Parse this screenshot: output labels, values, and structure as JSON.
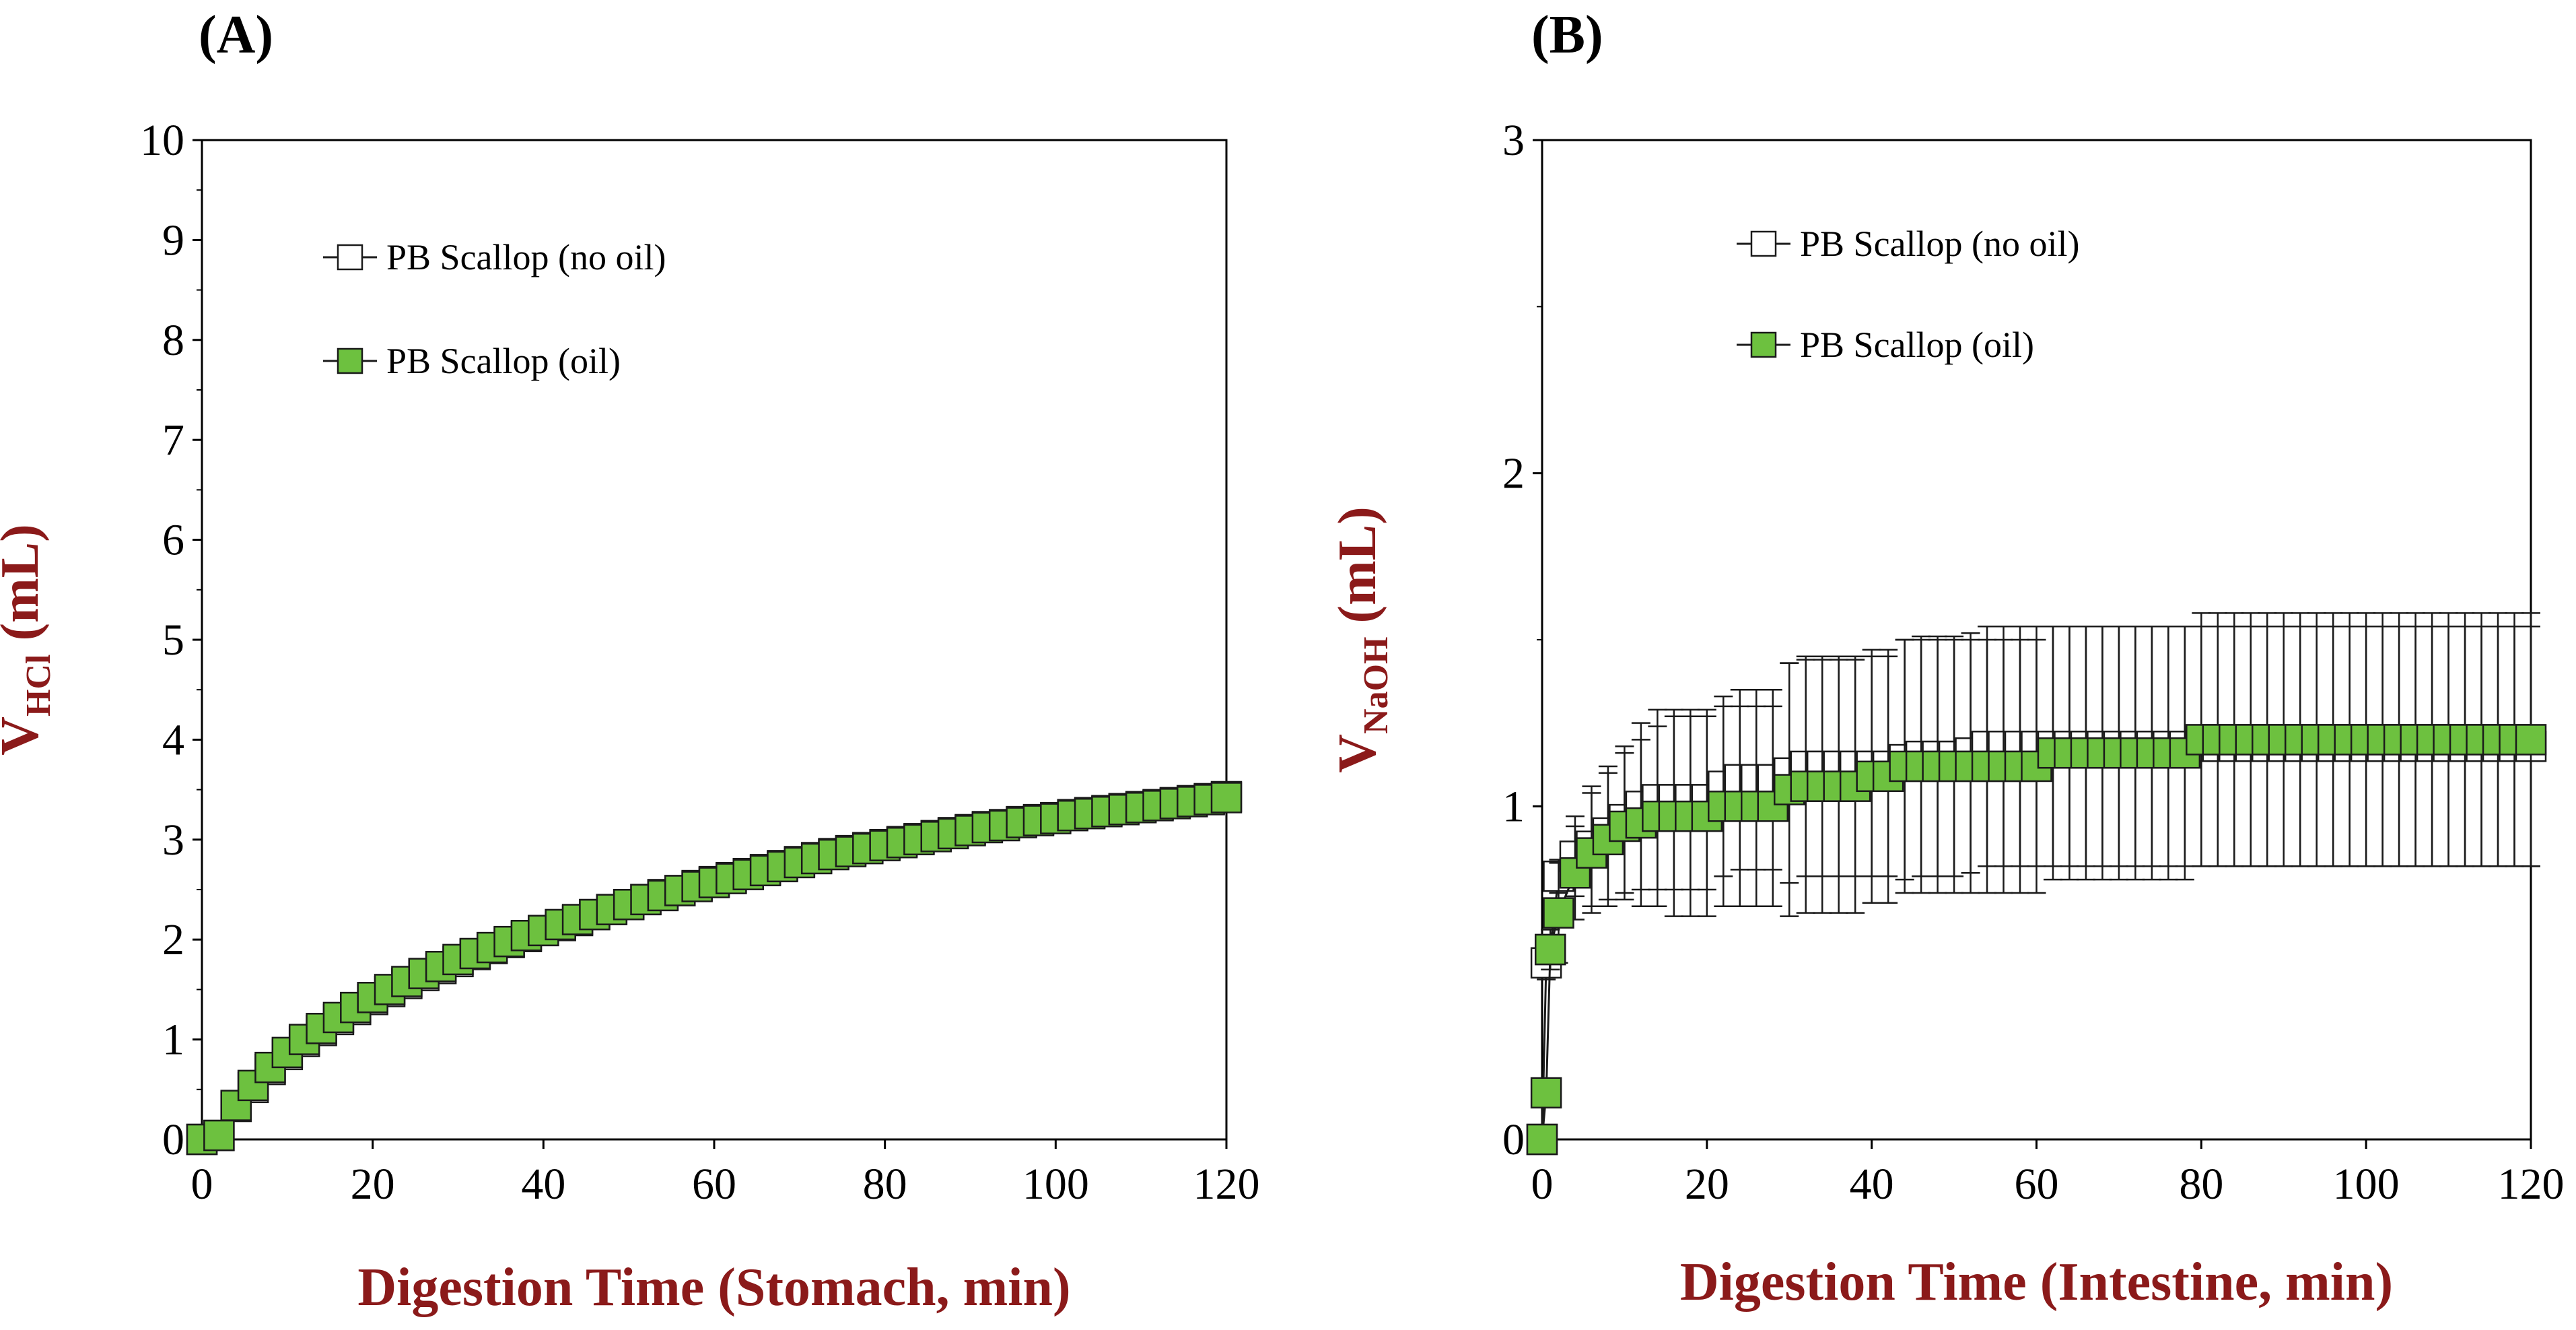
{
  "colors": {
    "axis_title": "#8b1a1a",
    "marker_fill_oil": "#6dc13f",
    "marker_fill_no_oil": "#ffffff",
    "marker_stroke": "#1a1a1a"
  },
  "chart_data": [
    {
      "panel": "(A)",
      "type": "line",
      "title": "(A)",
      "xlabel": "Digestion Time (Stomach, min)",
      "ylabel_main": "V",
      "ylabel_sub": "HCl",
      "ylabel_unit": "(mL)",
      "xlim": [
        0,
        120
      ],
      "ylim": [
        0,
        10
      ],
      "xticks": [
        0,
        20,
        40,
        60,
        80,
        100,
        120
      ],
      "yticks": [
        0,
        1,
        2,
        3,
        4,
        5,
        6,
        7,
        8,
        9,
        10
      ],
      "grid": false,
      "legend_position": "top-left",
      "series": [
        {
          "name": "PB Scallop (no oil)",
          "marker": "open-square",
          "x": [
            0,
            2,
            4,
            6,
            8,
            10,
            12,
            14,
            16,
            18,
            20,
            22,
            24,
            26,
            28,
            30,
            32,
            34,
            36,
            38,
            40,
            42,
            44,
            46,
            48,
            50,
            52,
            54,
            56,
            58,
            60,
            62,
            64,
            66,
            68,
            70,
            72,
            74,
            76,
            78,
            80,
            82,
            84,
            86,
            88,
            90,
            92,
            94,
            96,
            98,
            100,
            102,
            104,
            106,
            108,
            110,
            112,
            114,
            116,
            118,
            120
          ],
          "y": [
            0,
            0.04,
            0.33,
            0.52,
            0.7,
            0.85,
            0.98,
            1.09,
            1.2,
            1.3,
            1.4,
            1.48,
            1.56,
            1.64,
            1.71,
            1.78,
            1.85,
            1.91,
            1.97,
            2.03,
            2.09,
            2.14,
            2.19,
            2.25,
            2.3,
            2.35,
            2.4,
            2.45,
            2.49,
            2.54,
            2.58,
            2.62,
            2.66,
            2.7,
            2.74,
            2.78,
            2.82,
            2.86,
            2.89,
            2.92,
            2.95,
            2.98,
            3.01,
            3.04,
            3.07,
            3.1,
            3.13,
            3.15,
            3.18,
            3.2,
            3.22,
            3.25,
            3.27,
            3.29,
            3.31,
            3.33,
            3.35,
            3.37,
            3.39,
            3.41,
            3.43
          ],
          "err": [
            0,
            0.02,
            0.04,
            0.05,
            0.06,
            0.07,
            0.07,
            0.08,
            0.08,
            0.09,
            0.09,
            0.09,
            0.1,
            0.1,
            0.1,
            0.1,
            0.1,
            0.1,
            0.1,
            0.1,
            0.1,
            0.1,
            0.1,
            0.1,
            0.1,
            0.1,
            0.1,
            0.11,
            0.11,
            0.11,
            0.11,
            0.11,
            0.11,
            0.11,
            0.11,
            0.11,
            0.11,
            0.11,
            0.12,
            0.12,
            0.12,
            0.12,
            0.12,
            0.12,
            0.12,
            0.12,
            0.12,
            0.12,
            0.13,
            0.13,
            0.13,
            0.13,
            0.13,
            0.13,
            0.13,
            0.13,
            0.14,
            0.14,
            0.14,
            0.14,
            0.14
          ]
        },
        {
          "name": "PB Scallop (oil)",
          "marker": "green-square",
          "x": [
            0,
            2,
            4,
            6,
            8,
            10,
            12,
            14,
            16,
            18,
            20,
            22,
            24,
            26,
            28,
            30,
            32,
            34,
            36,
            38,
            40,
            42,
            44,
            46,
            48,
            50,
            52,
            54,
            56,
            58,
            60,
            62,
            64,
            66,
            68,
            70,
            72,
            74,
            76,
            78,
            80,
            82,
            84,
            86,
            88,
            90,
            92,
            94,
            96,
            98,
            100,
            102,
            104,
            106,
            108,
            110,
            112,
            114,
            116,
            118,
            120
          ],
          "y": [
            0,
            0.04,
            0.34,
            0.54,
            0.72,
            0.87,
            1.0,
            1.11,
            1.22,
            1.32,
            1.42,
            1.5,
            1.58,
            1.66,
            1.73,
            1.8,
            1.86,
            1.92,
            1.98,
            2.04,
            2.09,
            2.15,
            2.2,
            2.25,
            2.3,
            2.35,
            2.4,
            2.44,
            2.49,
            2.53,
            2.57,
            2.61,
            2.65,
            2.69,
            2.73,
            2.77,
            2.81,
            2.85,
            2.88,
            2.91,
            2.94,
            2.97,
            3.0,
            3.03,
            3.06,
            3.09,
            3.12,
            3.14,
            3.17,
            3.19,
            3.21,
            3.24,
            3.26,
            3.28,
            3.3,
            3.32,
            3.34,
            3.36,
            3.38,
            3.4,
            3.42
          ],
          "err": [
            0,
            0.02,
            0.04,
            0.05,
            0.06,
            0.07,
            0.07,
            0.08,
            0.08,
            0.09,
            0.09,
            0.09,
            0.1,
            0.1,
            0.1,
            0.1,
            0.1,
            0.1,
            0.1,
            0.1,
            0.1,
            0.1,
            0.1,
            0.1,
            0.1,
            0.1,
            0.1,
            0.11,
            0.11,
            0.11,
            0.11,
            0.11,
            0.11,
            0.11,
            0.11,
            0.11,
            0.11,
            0.11,
            0.12,
            0.12,
            0.12,
            0.12,
            0.12,
            0.12,
            0.12,
            0.12,
            0.12,
            0.12,
            0.13,
            0.13,
            0.13,
            0.13,
            0.13,
            0.13,
            0.13,
            0.13,
            0.14,
            0.14,
            0.14,
            0.14,
            0.14
          ]
        }
      ]
    },
    {
      "panel": "(B)",
      "type": "line",
      "title": "(B)",
      "xlabel": "Digestion Time (Intestine, min)",
      "ylabel_main": "V",
      "ylabel_sub": "NaOH",
      "ylabel_unit": "(mL)",
      "xlim": [
        0,
        120
      ],
      "ylim": [
        0,
        3
      ],
      "xticks": [
        0,
        20,
        40,
        60,
        80,
        100,
        120
      ],
      "yticks": [
        0,
        1,
        2,
        3
      ],
      "yminor": [
        0.5,
        1.5,
        2.5
      ],
      "grid": false,
      "legend_position": "top-left",
      "series": [
        {
          "name": "PB Scallop (no oil)",
          "marker": "open-square",
          "x": [
            0,
            0.5,
            1,
            2,
            4,
            6,
            8,
            10,
            12,
            14,
            16,
            18,
            20,
            22,
            24,
            26,
            28,
            30,
            32,
            34,
            36,
            38,
            40,
            42,
            44,
            46,
            48,
            50,
            52,
            54,
            56,
            58,
            60,
            62,
            64,
            66,
            68,
            70,
            72,
            74,
            76,
            78,
            80,
            82,
            84,
            86,
            88,
            90,
            92,
            94,
            96,
            98,
            100,
            102,
            104,
            106,
            108,
            110,
            112,
            114,
            116,
            118,
            120
          ],
          "y": [
            0,
            0.53,
            0.57,
            0.79,
            0.85,
            0.88,
            0.92,
            0.96,
            1.0,
            1.02,
            1.02,
            1.02,
            1.02,
            1.06,
            1.08,
            1.08,
            1.08,
            1.1,
            1.12,
            1.12,
            1.12,
            1.12,
            1.12,
            1.12,
            1.14,
            1.15,
            1.15,
            1.15,
            1.16,
            1.18,
            1.18,
            1.18,
            1.18,
            1.18,
            1.18,
            1.18,
            1.18,
            1.18,
            1.18,
            1.18,
            1.18,
            1.18,
            1.18,
            1.18,
            1.18,
            1.18,
            1.18,
            1.18,
            1.18,
            1.18,
            1.18,
            1.18,
            1.18,
            1.18,
            1.18,
            1.18,
            1.18,
            1.18,
            1.18,
            1.18,
            1.18,
            1.18,
            1.18
          ],
          "err": [
            0,
            0.05,
            0.06,
            0.05,
            0.12,
            0.18,
            0.2,
            0.22,
            0.25,
            0.27,
            0.27,
            0.27,
            0.27,
            0.27,
            0.27,
            0.27,
            0.27,
            0.33,
            0.33,
            0.33,
            0.33,
            0.33,
            0.33,
            0.33,
            0.36,
            0.36,
            0.36,
            0.36,
            0.36,
            0.36,
            0.36,
            0.36,
            0.36,
            0.36,
            0.36,
            0.36,
            0.36,
            0.36,
            0.36,
            0.36,
            0.36,
            0.36,
            0.36,
            0.36,
            0.36,
            0.36,
            0.36,
            0.36,
            0.36,
            0.36,
            0.36,
            0.36,
            0.36,
            0.36,
            0.36,
            0.36,
            0.36,
            0.36,
            0.36,
            0.36,
            0.36,
            0.36,
            0.36
          ]
        },
        {
          "name": "PB Scallop (oil)",
          "marker": "green-square",
          "x": [
            0,
            0.5,
            1,
            2,
            4,
            6,
            8,
            10,
            12,
            14,
            16,
            18,
            20,
            22,
            24,
            26,
            28,
            30,
            32,
            34,
            36,
            38,
            40,
            42,
            44,
            46,
            48,
            50,
            52,
            54,
            56,
            58,
            60,
            62,
            64,
            66,
            68,
            70,
            72,
            74,
            76,
            78,
            80,
            82,
            84,
            86,
            88,
            90,
            92,
            94,
            96,
            98,
            100,
            102,
            104,
            106,
            108,
            110,
            112,
            114,
            116,
            118,
            120
          ],
          "y": [
            0,
            0.14,
            0.57,
            0.68,
            0.8,
            0.86,
            0.9,
            0.94,
            0.95,
            0.97,
            0.97,
            0.97,
            0.97,
            1.0,
            1.0,
            1.0,
            1.0,
            1.05,
            1.06,
            1.06,
            1.06,
            1.06,
            1.09,
            1.09,
            1.12,
            1.12,
            1.12,
            1.12,
            1.12,
            1.12,
            1.12,
            1.12,
            1.12,
            1.16,
            1.16,
            1.16,
            1.16,
            1.16,
            1.16,
            1.16,
            1.16,
            1.16,
            1.2,
            1.2,
            1.2,
            1.2,
            1.2,
            1.2,
            1.2,
            1.2,
            1.2,
            1.2,
            1.2,
            1.2,
            1.2,
            1.2,
            1.2,
            1.2,
            1.2,
            1.2,
            1.2,
            1.2,
            1.2
          ],
          "err": [
            0,
            0.02,
            0.06,
            0.15,
            0.14,
            0.18,
            0.2,
            0.22,
            0.25,
            0.27,
            0.3,
            0.3,
            0.3,
            0.3,
            0.3,
            0.3,
            0.3,
            0.38,
            0.38,
            0.38,
            0.38,
            0.38,
            0.38,
            0.38,
            0.38,
            0.38,
            0.38,
            0.38,
            0.38,
            0.38,
            0.38,
            0.38,
            0.38,
            0.38,
            0.38,
            0.38,
            0.38,
            0.38,
            0.38,
            0.38,
            0.38,
            0.38,
            0.38,
            0.38,
            0.38,
            0.38,
            0.38,
            0.38,
            0.38,
            0.38,
            0.38,
            0.38,
            0.38,
            0.38,
            0.38,
            0.38,
            0.38,
            0.38,
            0.38,
            0.38,
            0.38,
            0.38,
            0.38
          ]
        }
      ]
    }
  ]
}
